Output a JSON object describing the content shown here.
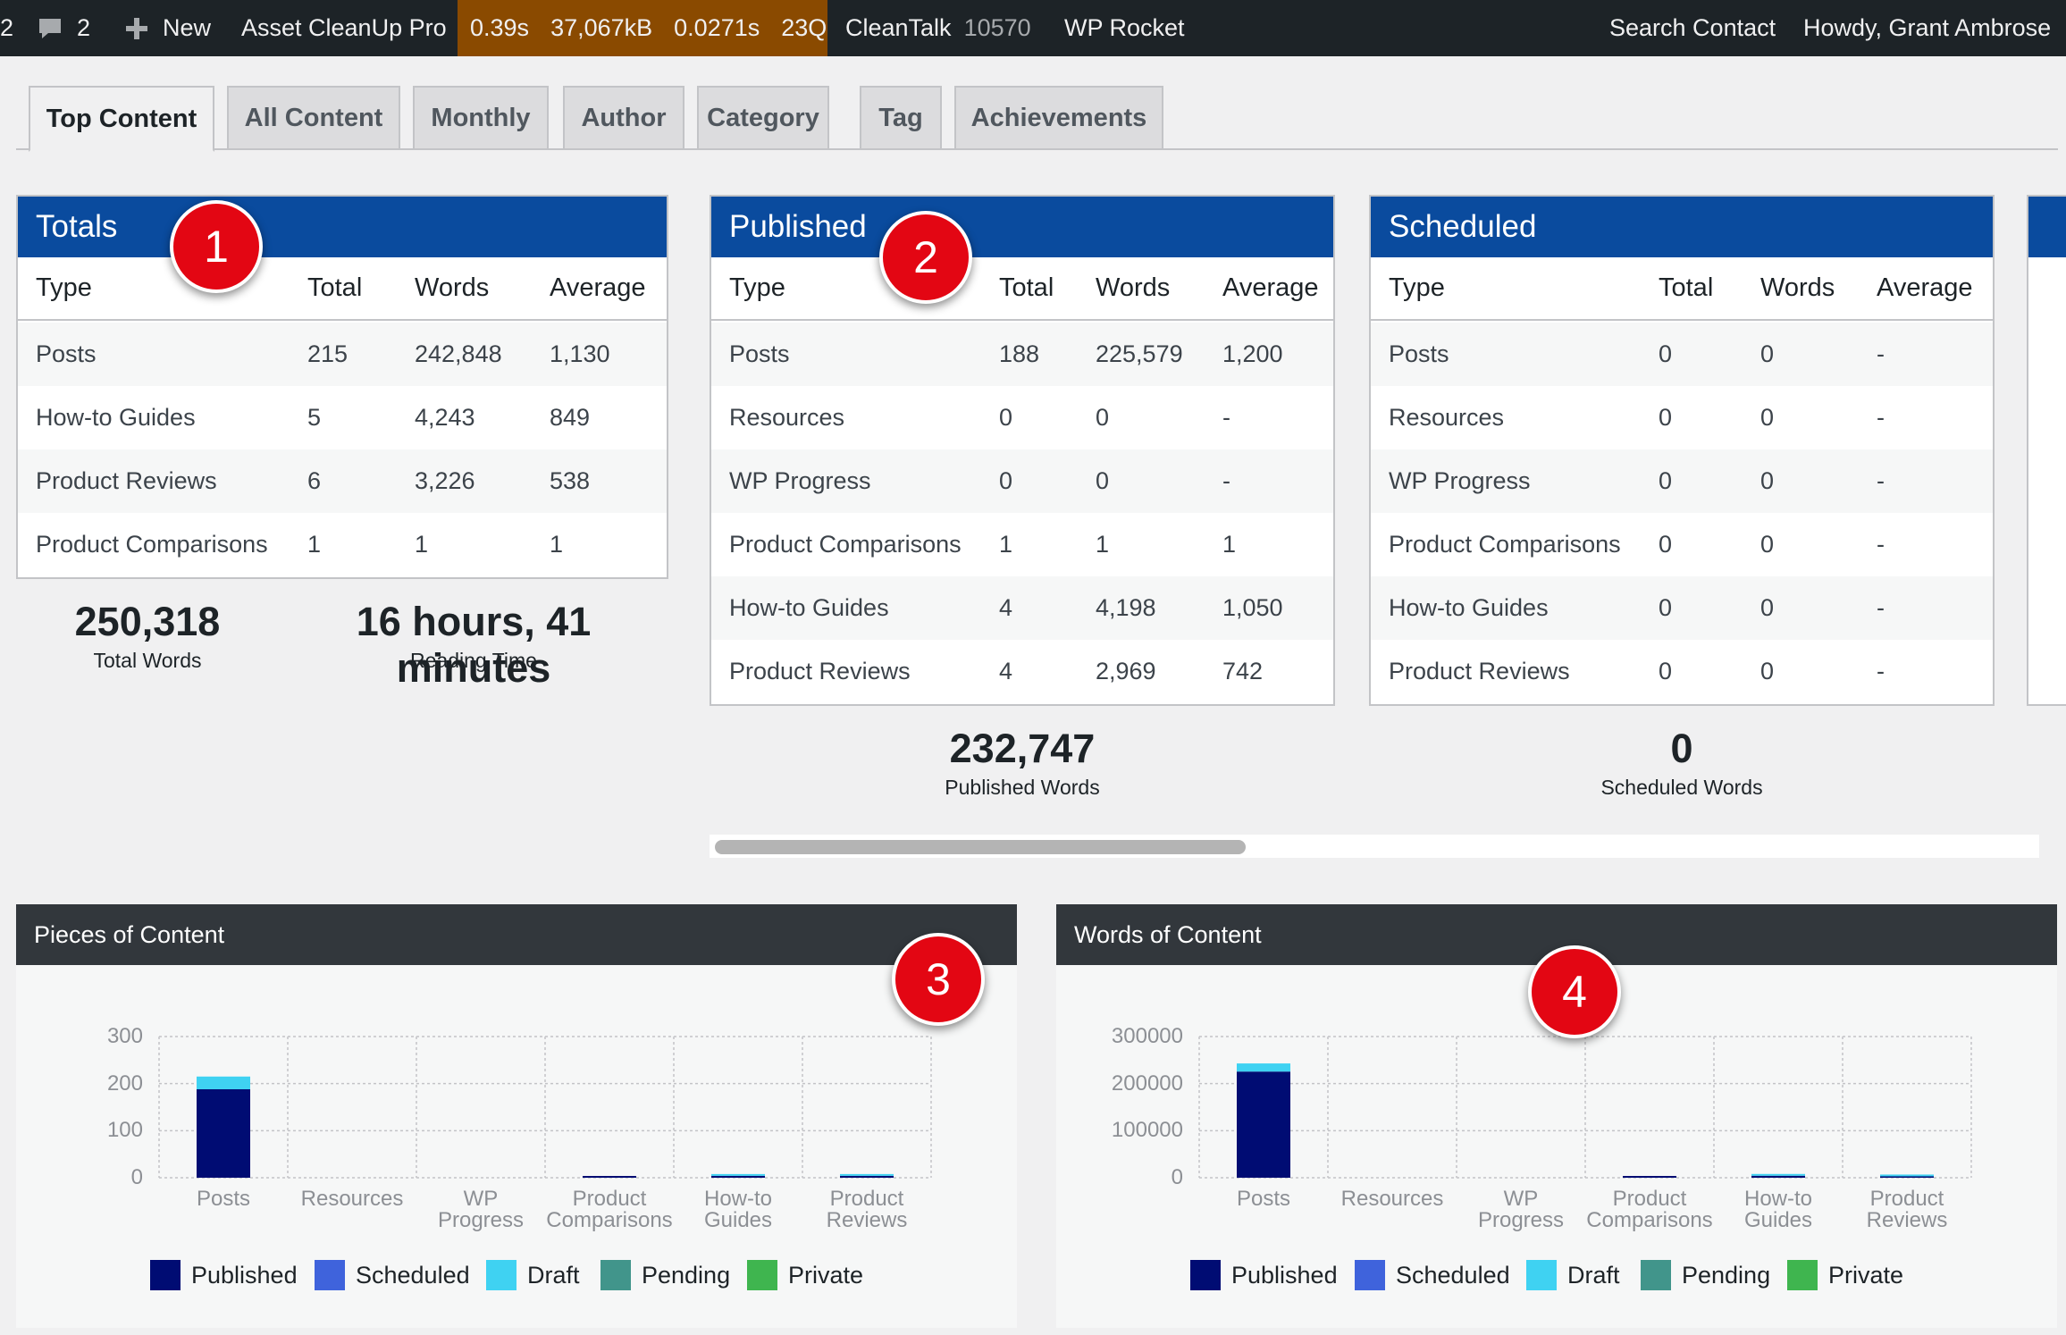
{
  "adminbar": {
    "left_num": "2",
    "comments_count": "2",
    "new_label": "New",
    "asset_cleanup": "Asset CleanUp Pro",
    "qm": [
      "0.39s",
      "37,067kB",
      "0.0271s",
      "23Q"
    ],
    "cleantalk": "CleanTalk",
    "cleantalk_count": "10570",
    "wp_rocket": "WP Rocket",
    "search_contact": "Search Contact",
    "howdy": "Howdy, Grant Ambrose"
  },
  "tabs": [
    "Top Content",
    "All Content",
    "Monthly",
    "Author",
    "Category",
    "Tag",
    "Achievements"
  ],
  "columns": [
    "Type",
    "Total",
    "Words",
    "Average"
  ],
  "totals": {
    "title": "Totals",
    "rows": [
      [
        "Posts",
        "215",
        "242,848",
        "1,130"
      ],
      [
        "How-to Guides",
        "5",
        "4,243",
        "849"
      ],
      [
        "Product Reviews",
        "6",
        "3,226",
        "538"
      ],
      [
        "Product Comparisons",
        "1",
        "1",
        "1"
      ]
    ],
    "total_words": "250,318",
    "total_words_label": "Total Words",
    "reading_time": "16 hours, 41 minutes",
    "reading_time_label": "Reading Time"
  },
  "published": {
    "title": "Published",
    "rows": [
      [
        "Posts",
        "188",
        "225,579",
        "1,200"
      ],
      [
        "Resources",
        "0",
        "0",
        "-"
      ],
      [
        "WP Progress",
        "0",
        "0",
        "-"
      ],
      [
        "Product Comparisons",
        "1",
        "1",
        "1"
      ],
      [
        "How-to Guides",
        "4",
        "4,198",
        "1,050"
      ],
      [
        "Product Reviews",
        "4",
        "2,969",
        "742"
      ]
    ],
    "words": "232,747",
    "words_label": "Published Words"
  },
  "scheduled": {
    "title": "Scheduled",
    "rows": [
      [
        "Posts",
        "0",
        "0",
        "-"
      ],
      [
        "Resources",
        "0",
        "0",
        "-"
      ],
      [
        "WP Progress",
        "0",
        "0",
        "-"
      ],
      [
        "Product Comparisons",
        "0",
        "0",
        "-"
      ],
      [
        "How-to Guides",
        "0",
        "0",
        "-"
      ],
      [
        "Product Reviews",
        "0",
        "0",
        "-"
      ]
    ],
    "words": "0",
    "words_label": "Scheduled Words"
  },
  "badges": [
    "1",
    "2",
    "3",
    "4"
  ],
  "colors": {
    "published": "#000c73",
    "scheduled": "#3f63dc",
    "draft": "#3fd2f2",
    "pending": "#41958b",
    "private": "#3fb54f"
  },
  "chart_data": [
    {
      "type": "bar",
      "title": "Pieces of Content",
      "stacked": true,
      "categories": [
        [
          "Posts"
        ],
        [
          "Resources"
        ],
        [
          "WP",
          "Progress"
        ],
        [
          "Product",
          "Comparisons"
        ],
        [
          "How-to",
          "Guides"
        ],
        [
          "Product",
          "Reviews"
        ]
      ],
      "ylim": [
        0,
        300
      ],
      "yticks": [
        "0",
        "100",
        "200",
        "300"
      ],
      "grid": true,
      "legend_position": "bottom",
      "series": [
        {
          "name": "Published",
          "values": [
            188,
            0,
            0,
            1,
            4,
            4
          ]
        },
        {
          "name": "Scheduled",
          "values": [
            0,
            0,
            0,
            0,
            0,
            0
          ]
        },
        {
          "name": "Draft",
          "values": [
            27,
            0,
            0,
            0,
            1,
            2
          ]
        },
        {
          "name": "Pending",
          "values": [
            0,
            0,
            0,
            0,
            0,
            0
          ]
        },
        {
          "name": "Private",
          "values": [
            0,
            0,
            0,
            0,
            0,
            0
          ]
        }
      ]
    },
    {
      "type": "bar",
      "title": "Words of Content",
      "stacked": true,
      "categories": [
        [
          "Posts"
        ],
        [
          "Resources"
        ],
        [
          "WP",
          "Progress"
        ],
        [
          "Product",
          "Comparisons"
        ],
        [
          "How-to",
          "Guides"
        ],
        [
          "Product",
          "Reviews"
        ]
      ],
      "ylim": [
        0,
        300000
      ],
      "yticks": [
        "0",
        "100000",
        "200000",
        "300000"
      ],
      "grid": true,
      "legend_position": "bottom",
      "series": [
        {
          "name": "Published",
          "values": [
            225579,
            0,
            0,
            1,
            4198,
            2969
          ]
        },
        {
          "name": "Scheduled",
          "values": [
            0,
            0,
            0,
            0,
            0,
            0
          ]
        },
        {
          "name": "Draft",
          "values": [
            17269,
            0,
            0,
            0,
            45,
            257
          ]
        },
        {
          "name": "Pending",
          "values": [
            0,
            0,
            0,
            0,
            0,
            0
          ]
        },
        {
          "name": "Private",
          "values": [
            0,
            0,
            0,
            0,
            0,
            0
          ]
        }
      ]
    }
  ]
}
